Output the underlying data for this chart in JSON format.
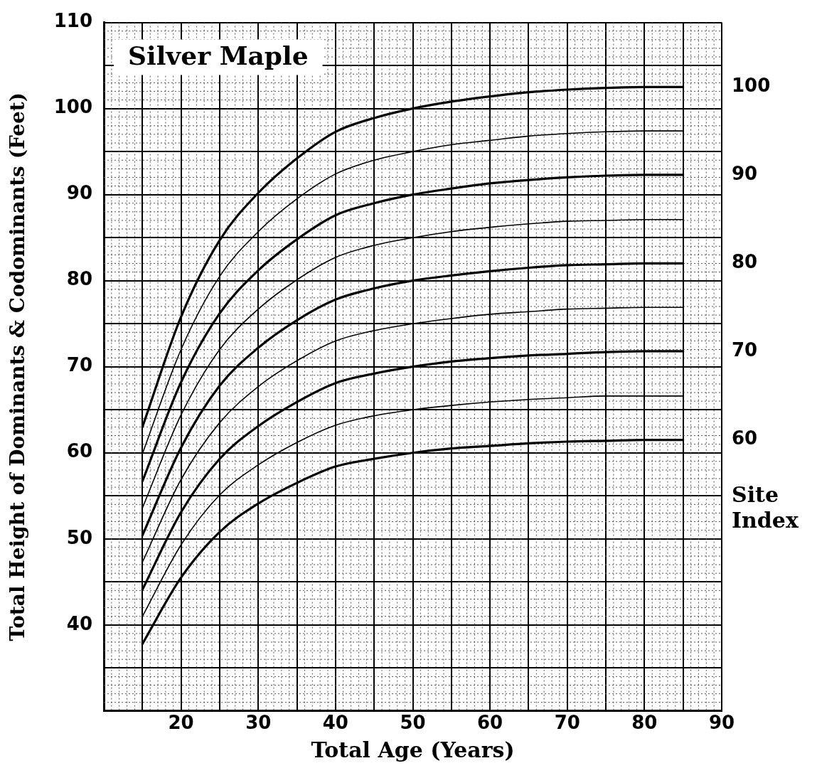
{
  "chart_data": {
    "type": "line",
    "title": "Silver Maple",
    "xlabel": "Total Age (Years)",
    "ylabel": "Total Height of Dominants & Codominants (Feet)",
    "x": [
      15,
      20,
      25,
      30,
      35,
      40,
      45,
      50,
      55,
      60,
      65,
      70,
      75,
      80,
      85
    ],
    "xlim": [
      10,
      90
    ],
    "xticks": [
      {
        "value": 10,
        "label": null
      },
      {
        "value": 15,
        "label": null
      },
      20,
      {
        "value": 25,
        "label": null
      },
      30,
      {
        "value": 35,
        "label": null
      },
      40,
      {
        "value": 45,
        "label": null
      },
      50,
      {
        "value": 55,
        "label": null
      },
      60,
      {
        "value": 65,
        "label": null
      },
      70,
      {
        "value": 75,
        "label": null
      },
      80,
      {
        "value": 85,
        "label": null
      },
      90
    ],
    "ylim": [
      30,
      110
    ],
    "yticks": [
      {
        "value": 30,
        "label": null
      },
      {
        "value": 35,
        "label": null
      },
      40,
      {
        "value": 45,
        "label": null
      },
      50,
      {
        "value": 55,
        "label": null
      },
      60,
      {
        "value": 65,
        "label": null
      },
      70,
      {
        "value": 75,
        "label": null
      },
      80,
      {
        "value": 85,
        "label": null
      },
      90,
      {
        "value": 95,
        "label": null
      },
      100,
      {
        "value": 105,
        "label": null
      },
      110
    ],
    "grid": true,
    "legend": false,
    "marker": "none",
    "line_style": "solid",
    "annotations": [
      "Site Index"
    ],
    "series": [
      {
        "name": "100",
        "color": "#000000",
        "values": [
          63,
          75.8,
          84.7,
          90.2,
          94.2,
          97.3,
          98.9,
          100,
          100.8,
          101.4,
          101.9,
          102.2,
          102.4,
          102.5,
          102.5
        ]
      },
      {
        "color": "#000000",
        "values": [
          59.9,
          72,
          80.5,
          85.7,
          89.5,
          92.4,
          94,
          95,
          95.8,
          96.3,
          96.8,
          97.1,
          97.3,
          97.4,
          97.4
        ]
      },
      {
        "name": "90",
        "color": "#000000",
        "values": [
          56.7,
          68.2,
          76.2,
          81.2,
          84.8,
          87.6,
          89,
          90,
          90.7,
          91.3,
          91.7,
          92,
          92.2,
          92.3,
          92.3
        ]
      },
      {
        "color": "#000000",
        "values": [
          53.6,
          64.4,
          72,
          76.7,
          80.1,
          82.7,
          84.1,
          85,
          85.7,
          86.2,
          86.6,
          86.9,
          87,
          87.1,
          87.1
        ]
      },
      {
        "name": "80",
        "color": "#000000",
        "values": [
          50.4,
          60.6,
          67.8,
          72.2,
          75.4,
          77.8,
          79.1,
          80,
          80.6,
          81.1,
          81.5,
          81.8,
          81.9,
          82,
          82
        ]
      },
      {
        "color": "#000000",
        "values": [
          47.3,
          56.9,
          63.5,
          67.7,
          70.7,
          73,
          74.2,
          75,
          75.6,
          76.1,
          76.4,
          76.7,
          76.8,
          76.9,
          76.9
        ]
      },
      {
        "name": "70",
        "color": "#000000",
        "values": [
          44.1,
          53.1,
          59.3,
          63.1,
          65.9,
          68.1,
          69.2,
          70,
          70.6,
          71,
          71.3,
          71.5,
          71.7,
          71.8,
          71.8
        ]
      },
      {
        "color": "#000000",
        "values": [
          41,
          49.3,
          55.1,
          58.6,
          61.2,
          63.2,
          64.3,
          65,
          65.5,
          65.9,
          66.2,
          66.4,
          66.6,
          66.6,
          66.6
        ]
      },
      {
        "name": "60",
        "color": "#000000",
        "values": [
          37.8,
          45.5,
          50.8,
          54.1,
          56.5,
          58.4,
          59.3,
          60,
          60.5,
          60.8,
          61.1,
          61.3,
          61.4,
          61.5,
          61.5
        ]
      }
    ]
  }
}
